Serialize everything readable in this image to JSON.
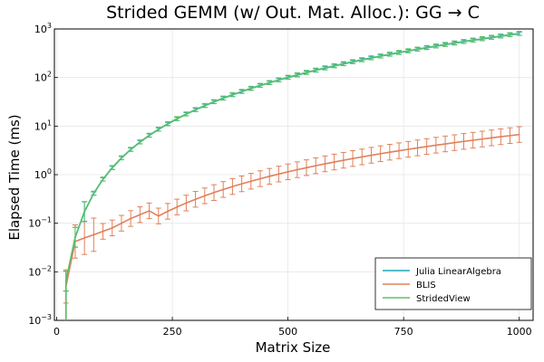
{
  "chart_data": {
    "type": "line",
    "title": "Strided GEMM (w/ Out. Mat. Alloc.): GG → C",
    "xlabel": "Matrix Size",
    "ylabel": "Elapsed Time (ms)",
    "xlim": [
      -5,
      1030
    ],
    "ylim_log10": [
      -3,
      3
    ],
    "y_scale": "log",
    "grid": true,
    "legend_position": "bottom-right",
    "x_ticks": [
      {
        "value": 0,
        "label": "0"
      },
      {
        "value": 250,
        "label": "250"
      },
      {
        "value": 500,
        "label": "500"
      },
      {
        "value": 750,
        "label": "750"
      },
      {
        "value": 1000,
        "label": "1000"
      }
    ],
    "y_ticks": [
      {
        "exp": -3,
        "base": "10",
        "sup": "−3"
      },
      {
        "exp": -2,
        "base": "10",
        "sup": "−2"
      },
      {
        "exp": -1,
        "base": "10",
        "sup": "−1"
      },
      {
        "exp": 0,
        "base": "10",
        "sup": "0"
      },
      {
        "exp": 1,
        "base": "10",
        "sup": "1"
      },
      {
        "exp": 2,
        "base": "10",
        "sup": "2"
      },
      {
        "exp": 3,
        "base": "10",
        "sup": "3"
      }
    ],
    "x_range": [
      20,
      1000
    ],
    "x_step": 20,
    "series": [
      {
        "name": "Julia LinearAlgebra",
        "color": "#009AFA",
        "color_display": "#1aa7b8",
        "model": "cubic",
        "anchor_x": 1000,
        "anchor_y": 800,
        "errorbar_ratio": 1.08
      },
      {
        "name": "BLIS",
        "color": "#E26F46",
        "color_display": "#e0805a",
        "model": "mixed",
        "points": [
          {
            "x": 20,
            "y": 0.005
          },
          {
            "x": 40,
            "y": 0.042
          },
          {
            "x": 60,
            "y": 0.05
          },
          {
            "x": 80,
            "y": 0.058
          },
          {
            "x": 100,
            "y": 0.068
          },
          {
            "x": 120,
            "y": 0.08
          },
          {
            "x": 140,
            "y": 0.1
          },
          {
            "x": 160,
            "y": 0.125
          },
          {
            "x": 180,
            "y": 0.15
          },
          {
            "x": 200,
            "y": 0.18
          }
        ],
        "anchor_x": 1000,
        "anchor_y": 6.7,
        "power": 2.55,
        "errorbar_ratio": 1.45
      },
      {
        "name": "StridedView",
        "color": "#3DA44D",
        "color_display": "#5bbf6a",
        "model": "cubic",
        "anchor_x": 1000,
        "anchor_y": 810,
        "errorbar_ratio": 1.1
      }
    ]
  }
}
